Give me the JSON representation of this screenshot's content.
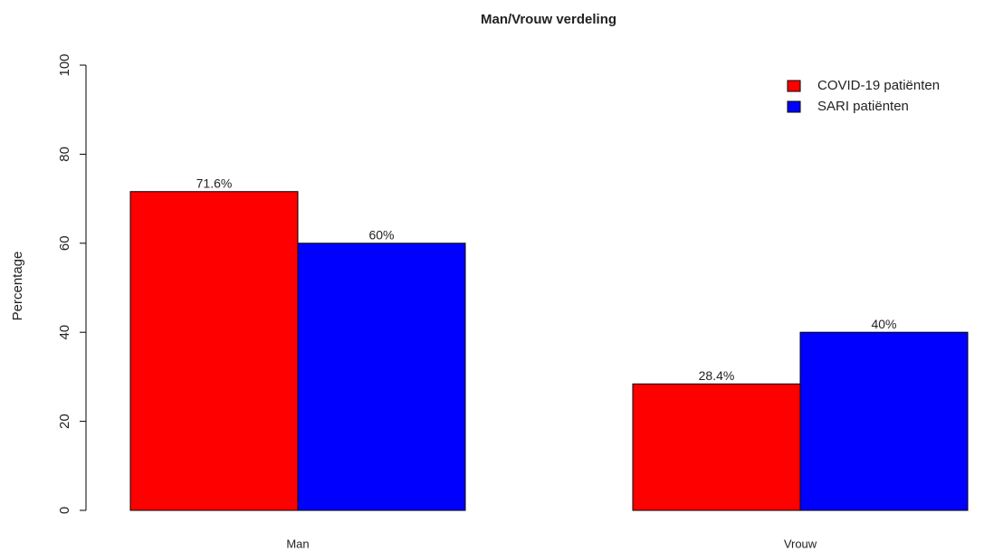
{
  "chart_data": {
    "type": "bar",
    "title": "Man/Vrouw verdeling",
    "y_label": "Percentage",
    "categories": [
      "Man",
      "Vrouw"
    ],
    "series": [
      {
        "name": "COVID-19 patiënten",
        "color": "#ff0000",
        "values": [
          71.6,
          28.4
        ],
        "value_labels": [
          "71.6%",
          "28.4%"
        ]
      },
      {
        "name": "SARI patiënten",
        "color": "#0000ff",
        "values": [
          60,
          40
        ],
        "value_labels": [
          "60%",
          "40%"
        ]
      }
    ],
    "ylim": [
      0,
      100
    ],
    "yticks": [
      0,
      20,
      40,
      60,
      80,
      100
    ],
    "legend": "top-right"
  }
}
